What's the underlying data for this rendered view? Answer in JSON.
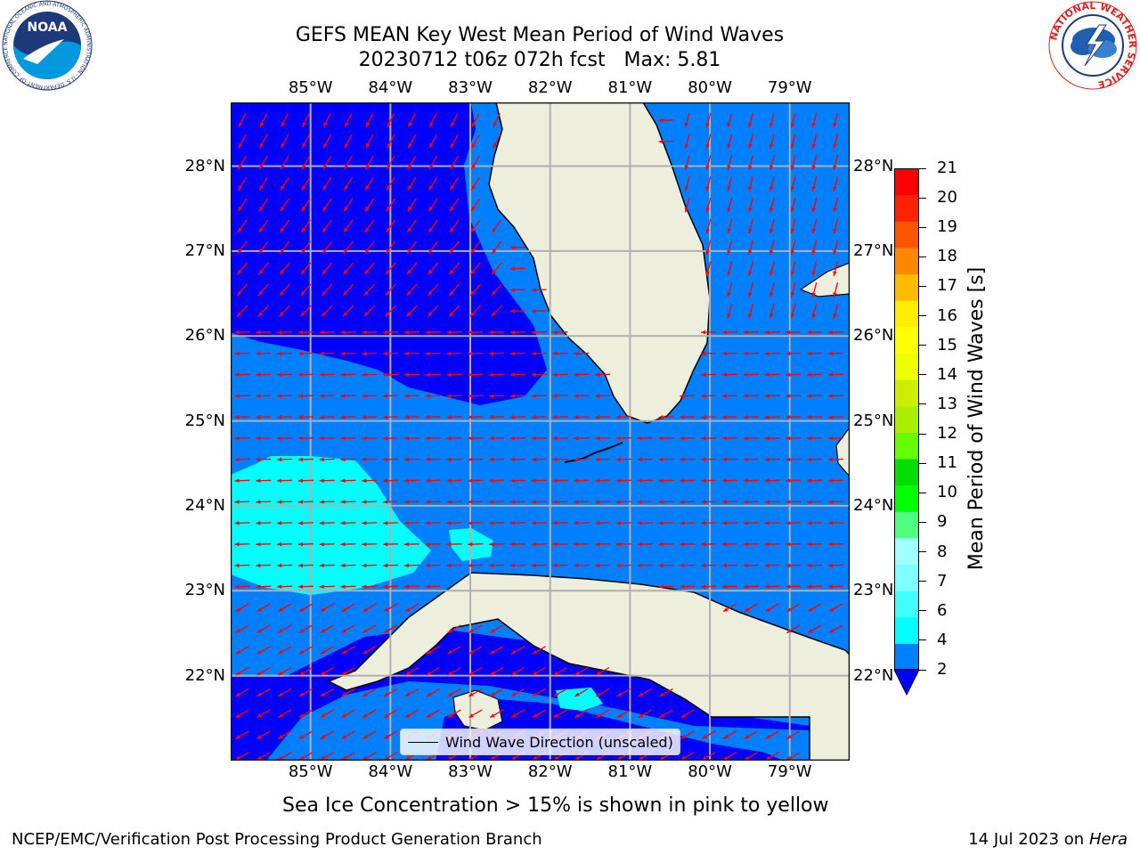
{
  "title": {
    "line1": "GEFS MEAN Key West Mean Period of Wind Waves",
    "line2": "20230712 t06z 072h fcst   Max: 5.81"
  },
  "logos": {
    "left": {
      "name": "noaa-logo",
      "text": "NOAA",
      "ring_text": "NATIONAL OCEANIC AND ATMOSPHERIC ADMINISTRATION · U.S. DEPARTMENT OF COMMERCE"
    },
    "right": {
      "name": "nws-logo",
      "ring_text": "NATIONAL WEATHER SERVICE"
    }
  },
  "map": {
    "lon_ticks": [
      "85°W",
      "84°W",
      "83°W",
      "82°W",
      "81°W",
      "80°W",
      "79°W"
    ],
    "lat_ticks": [
      "28°N",
      "27°N",
      "26°N",
      "25°N",
      "24°N",
      "23°N",
      "22°N"
    ],
    "lon_values": [
      -85,
      -84,
      -83,
      -82,
      -81,
      -80,
      -79
    ],
    "lat_values": [
      28,
      27,
      26,
      25,
      24,
      23,
      22
    ],
    "extent": {
      "lon_min": -86.0,
      "lon_max": -78.25,
      "lat_min": 21.0,
      "lat_max": 28.75
    },
    "legend_label": "Wind Wave Direction (unscaled)",
    "colors": {
      "land": "#eeeedc",
      "band_2_4": "#0080ff",
      "band_0_2": "#0000ff",
      "band_4_6": "#00ffff",
      "arrows": "#ff0000",
      "grid": "#b0b0b0"
    }
  },
  "colorbar": {
    "label": "Mean Period of Wind Waves [s]",
    "ticks": [
      "2",
      "4",
      "6",
      "7",
      "8",
      "9",
      "10",
      "11",
      "12",
      "13",
      "14",
      "15",
      "16",
      "17",
      "18",
      "19",
      "20",
      "21"
    ],
    "colors": [
      "#0080ff",
      "#00ffff",
      "#40ffff",
      "#80ffff",
      "#a0ffff",
      "#50ff80",
      "#00ff00",
      "#00dd00",
      "#66ff00",
      "#aaee00",
      "#ccee00",
      "#eeff00",
      "#ffff00",
      "#ffee00",
      "#ffbb00",
      "#ff8800",
      "#ff5500",
      "#ff2200",
      "#ff0000"
    ],
    "under_color": "#0000ff"
  },
  "subtitle": "Sea Ice Concentration > 15% is shown in pink to yellow",
  "footer": {
    "left": "NCEP/EMC/Verification Post Processing Product Generation Branch",
    "right_prefix": "14 Jul 2023 on ",
    "right_host": "Hera"
  }
}
